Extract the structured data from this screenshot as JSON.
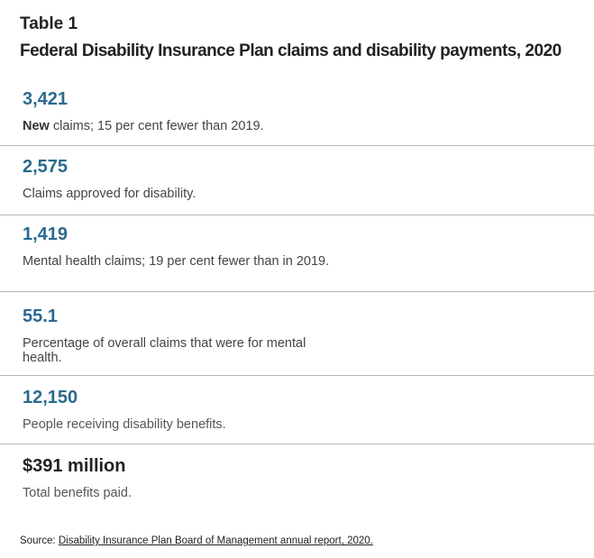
{
  "table": {
    "label": "Table 1",
    "title": "Federal Disability Insurance Plan claims and disability payments, 2020"
  },
  "stats": [
    {
      "value": "3,421",
      "desc_strong": "New",
      "desc": " claims; 15 per cent fewer than 2019."
    },
    {
      "value": "2,575",
      "desc": "Claims approved for disability."
    },
    {
      "value": "1,419",
      "desc": "Mental health claims; 19 per cent fewer than in 2019."
    },
    {
      "value": "55.1",
      "desc": "Percentage of overall claims that were for mental health."
    },
    {
      "value": "12,150",
      "desc": "People receiving disability benefits."
    },
    {
      "value": "$391 million",
      "desc": "Total benefits paid."
    }
  ],
  "source": {
    "label": "Source: ",
    "link_text": "Disability Insurance Plan Board of Management annual report, 2020."
  },
  "colors": {
    "value_blue": "#2b6a8e",
    "divider": "#b5b5b5"
  }
}
